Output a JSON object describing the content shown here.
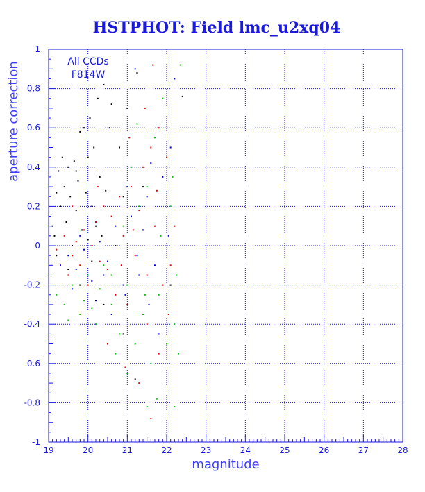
{
  "chart_data": {
    "type": "scatter",
    "title": "HSTPHOT: Field lmc_u2xq04",
    "xlabel": "magnitude",
    "ylabel": "aperture correction",
    "xlim": [
      19,
      28
    ],
    "ylim": [
      -1,
      1
    ],
    "x_ticks": [
      "19",
      "20",
      "21",
      "22",
      "23",
      "24",
      "25",
      "26",
      "27",
      "28"
    ],
    "y_ticks": [
      "-1",
      "-0.8",
      "-0.6",
      "-0.4",
      "-0.2",
      "0",
      "0.2",
      "0.4",
      "0.6",
      "0.8",
      "1"
    ],
    "grid": true,
    "annotation": [
      "All CCDs",
      "F814W"
    ],
    "colors": {
      "axis": "#1a1adc",
      "label": "#4040ff",
      "series_black": "#000000",
      "series_red": "#e00000",
      "series_green": "#00c000",
      "series_blue": "#0000e0"
    },
    "series": [
      {
        "color": "#000000",
        "points": [
          [
            19.1,
            0.1
          ],
          [
            19.2,
            0.27
          ],
          [
            19.25,
            0.38
          ],
          [
            19.3,
            0.2
          ],
          [
            19.35,
            0.45
          ],
          [
            19.4,
            0.3
          ],
          [
            19.45,
            0.12
          ],
          [
            19.5,
            0.4
          ],
          [
            19.55,
            0.25
          ],
          [
            19.6,
            0.0
          ],
          [
            19.65,
            0.43
          ],
          [
            19.7,
            0.18
          ],
          [
            19.75,
            0.33
          ],
          [
            19.8,
            0.58
          ],
          [
            19.85,
            0.08
          ],
          [
            19.9,
            0.6
          ],
          [
            19.95,
            0.27
          ],
          [
            20.0,
            0.45
          ],
          [
            20.05,
            0.65
          ],
          [
            20.1,
            0.2
          ],
          [
            20.15,
            0.5
          ],
          [
            20.2,
            0.1
          ],
          [
            20.25,
            0.75
          ],
          [
            20.3,
            0.35
          ],
          [
            20.35,
            0.05
          ],
          [
            20.4,
            0.82
          ],
          [
            20.45,
            0.28
          ],
          [
            20.55,
            0.6
          ],
          [
            20.6,
            0.72
          ],
          [
            20.7,
            0.0
          ],
          [
            20.8,
            0.5
          ],
          [
            20.9,
            0.25
          ],
          [
            21.0,
            0.7
          ],
          [
            21.25,
            0.88
          ],
          [
            21.4,
            0.3
          ],
          [
            19.2,
            -0.05
          ],
          [
            19.5,
            -0.12
          ],
          [
            19.8,
            -0.2
          ],
          [
            20.1,
            -0.08
          ],
          [
            20.4,
            -0.3
          ],
          [
            20.9,
            -0.45
          ],
          [
            21.2,
            -0.68
          ],
          [
            22.1,
            -0.2
          ],
          [
            22.4,
            0.76
          ],
          [
            19.15,
            0.05
          ],
          [
            19.7,
            0.38
          ],
          [
            20.0,
            0.03
          ]
        ]
      },
      {
        "color": "#e00000",
        "points": [
          [
            19.2,
            -0.02
          ],
          [
            19.3,
            -0.1
          ],
          [
            19.4,
            0.05
          ],
          [
            19.5,
            -0.15
          ],
          [
            19.6,
            -0.05
          ],
          [
            19.7,
            0.02
          ],
          [
            19.8,
            -0.1
          ],
          [
            19.9,
            0.08
          ],
          [
            20.0,
            -0.2
          ],
          [
            20.1,
            0.0
          ],
          [
            20.2,
            0.12
          ],
          [
            20.3,
            -0.08
          ],
          [
            20.4,
            0.2
          ],
          [
            20.5,
            -0.12
          ],
          [
            20.6,
            0.15
          ],
          [
            20.7,
            -0.25
          ],
          [
            20.8,
            0.25
          ],
          [
            20.9,
            0.05
          ],
          [
            21.0,
            -0.3
          ],
          [
            21.1,
            0.3
          ],
          [
            21.2,
            -0.05
          ],
          [
            21.3,
            0.18
          ],
          [
            21.4,
            0.4
          ],
          [
            21.5,
            -0.15
          ],
          [
            21.6,
            0.5
          ],
          [
            21.7,
            0.1
          ],
          [
            21.8,
            0.6
          ],
          [
            21.9,
            -0.2
          ],
          [
            22.0,
            0.45
          ],
          [
            22.1,
            -0.1
          ],
          [
            21.65,
            0.92
          ],
          [
            21.6,
            -0.88
          ],
          [
            21.5,
            -0.4
          ],
          [
            21.8,
            -0.55
          ],
          [
            22.2,
            0.1
          ],
          [
            20.5,
            -0.5
          ],
          [
            20.95,
            -0.62
          ],
          [
            21.3,
            -0.7
          ],
          [
            19.6,
            0.2
          ],
          [
            20.25,
            0.3
          ],
          [
            21.05,
            0.55
          ],
          [
            21.45,
            0.7
          ],
          [
            22.05,
            -0.35
          ],
          [
            21.75,
            0.28
          ],
          [
            20.85,
            -0.1
          ],
          [
            21.15,
            0.08
          ]
        ]
      },
      {
        "color": "#00c000",
        "points": [
          [
            19.2,
            -0.25
          ],
          [
            19.4,
            -0.3
          ],
          [
            19.6,
            -0.2
          ],
          [
            19.8,
            -0.35
          ],
          [
            20.0,
            -0.15
          ],
          [
            20.2,
            -0.4
          ],
          [
            20.4,
            -0.1
          ],
          [
            20.6,
            -0.3
          ],
          [
            20.8,
            -0.45
          ],
          [
            21.0,
            -0.2
          ],
          [
            21.2,
            -0.5
          ],
          [
            21.4,
            -0.35
          ],
          [
            21.6,
            -0.6
          ],
          [
            21.8,
            -0.25
          ],
          [
            22.0,
            -0.5
          ],
          [
            22.2,
            -0.4
          ],
          [
            22.3,
            -0.55
          ],
          [
            22.35,
            0.92
          ],
          [
            21.9,
            0.75
          ],
          [
            21.7,
            0.55
          ],
          [
            21.5,
            0.3
          ],
          [
            21.3,
            0.2
          ],
          [
            21.1,
            0.4
          ],
          [
            20.9,
            0.1
          ],
          [
            21.5,
            -0.82
          ],
          [
            22.2,
            -0.82
          ],
          [
            20.6,
            -0.15
          ],
          [
            21.0,
            -0.65
          ],
          [
            21.75,
            -0.78
          ],
          [
            22.1,
            0.2
          ],
          [
            20.3,
            -0.22
          ],
          [
            19.9,
            -0.28
          ],
          [
            21.25,
            0.62
          ],
          [
            21.85,
            0.05
          ],
          [
            22.25,
            -0.15
          ],
          [
            20.7,
            -0.55
          ],
          [
            19.5,
            -0.38
          ],
          [
            20.1,
            -0.32
          ],
          [
            21.45,
            -0.25
          ],
          [
            22.15,
            0.35
          ]
        ]
      },
      {
        "color": "#0000e0",
        "points": [
          [
            19.3,
            -0.1
          ],
          [
            19.5,
            -0.05
          ],
          [
            19.7,
            -0.12
          ],
          [
            19.9,
            -0.02
          ],
          [
            20.1,
            -0.18
          ],
          [
            20.3,
            0.02
          ],
          [
            20.5,
            -0.08
          ],
          [
            20.7,
            0.1
          ],
          [
            20.9,
            -0.2
          ],
          [
            21.1,
            0.15
          ],
          [
            21.3,
            -0.15
          ],
          [
            21.5,
            0.25
          ],
          [
            21.7,
            -0.1
          ],
          [
            21.9,
            0.35
          ],
          [
            22.1,
            0.5
          ],
          [
            21.2,
            0.9
          ],
          [
            22.2,
            0.85
          ],
          [
            21.8,
            -0.45
          ],
          [
            20.6,
            -0.35
          ],
          [
            20.95,
            -0.25
          ],
          [
            21.4,
            0.08
          ],
          [
            21.6,
            0.42
          ],
          [
            19.6,
            -0.22
          ],
          [
            20.2,
            -0.28
          ],
          [
            21.0,
            0.3
          ],
          [
            21.55,
            -0.3
          ],
          [
            22.05,
            0.05
          ],
          [
            19.8,
            0.05
          ],
          [
            20.4,
            -0.15
          ],
          [
            21.25,
            -0.05
          ]
        ]
      }
    ]
  }
}
